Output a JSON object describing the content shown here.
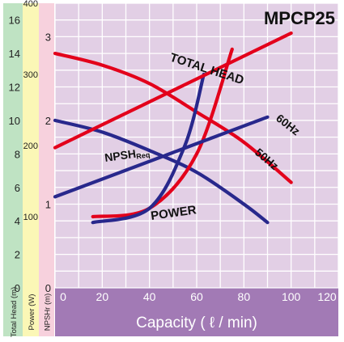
{
  "chart_data": {
    "type": "line",
    "title": "MPCP25",
    "xlabel": "Capacity ( ℓ / min)",
    "xlim": [
      0,
      120
    ],
    "x_ticks": [
      0,
      20,
      40,
      60,
      80,
      100,
      120
    ],
    "grid": true,
    "axes": {
      "total_head": {
        "label": "Total Head (m)",
        "range": [
          0,
          17
        ],
        "ticks": [
          0,
          2,
          4,
          6,
          8,
          10,
          12,
          14,
          16
        ]
      },
      "power": {
        "label": "Power (W)",
        "range": [
          0,
          400
        ],
        "ticks": [
          100,
          200,
          300,
          400
        ]
      },
      "npshr": {
        "label": "NPSHr (m)",
        "range": [
          0,
          3.4
        ],
        "ticks": [
          0,
          1,
          2,
          3
        ]
      }
    },
    "series": [
      {
        "name": "TOTAL HEAD 60Hz",
        "axis": "total_head",
        "color": "#e3001b",
        "x": [
          0,
          20,
          40,
          60,
          80,
          100
        ],
        "y": [
          14.0,
          13.3,
          12.2,
          10.5,
          8.7,
          6.3
        ]
      },
      {
        "name": "TOTAL HEAD 50Hz",
        "axis": "total_head",
        "color": "#28288c",
        "x": [
          0,
          20,
          40,
          60,
          80,
          90
        ],
        "y": [
          10.0,
          9.3,
          8.2,
          6.9,
          5.0,
          3.9
        ]
      },
      {
        "name": "NPSHReq 60Hz",
        "axis": "npshr",
        "color": "#e3001b",
        "x": [
          16,
          40,
          60,
          75
        ],
        "y": [
          0.85,
          0.95,
          1.6,
          2.85
        ]
      },
      {
        "name": "NPSHReq 50Hz",
        "axis": "npshr",
        "color": "#28288c",
        "x": [
          16,
          40,
          55,
          63
        ],
        "y": [
          0.78,
          0.95,
          1.7,
          2.55
        ]
      },
      {
        "name": "POWER 60Hz",
        "axis": "power",
        "color": "#e3001b",
        "x": [
          0,
          100
        ],
        "y": [
          197,
          358
        ]
      },
      {
        "name": "POWER 50Hz",
        "axis": "power",
        "color": "#28288c",
        "x": [
          0,
          90
        ],
        "y": [
          128,
          240
        ]
      }
    ],
    "annotations": {
      "total_head": "TOTAL HEAD",
      "hz60": "60Hz",
      "hz50": "50Hz",
      "npsh_main": "NPSH",
      "npsh_sub": "Req",
      "power": "POWER"
    }
  },
  "colors": {
    "plot_bg": "#e2cfe5",
    "grid": "#ffffff",
    "head_strip": "#bfe3c3",
    "power_strip": "#fbf7b6",
    "npsh_strip": "#f7d1dd",
    "x_axis_bar": "#a27ab5",
    "x_axis_text": "#ffffff"
  }
}
